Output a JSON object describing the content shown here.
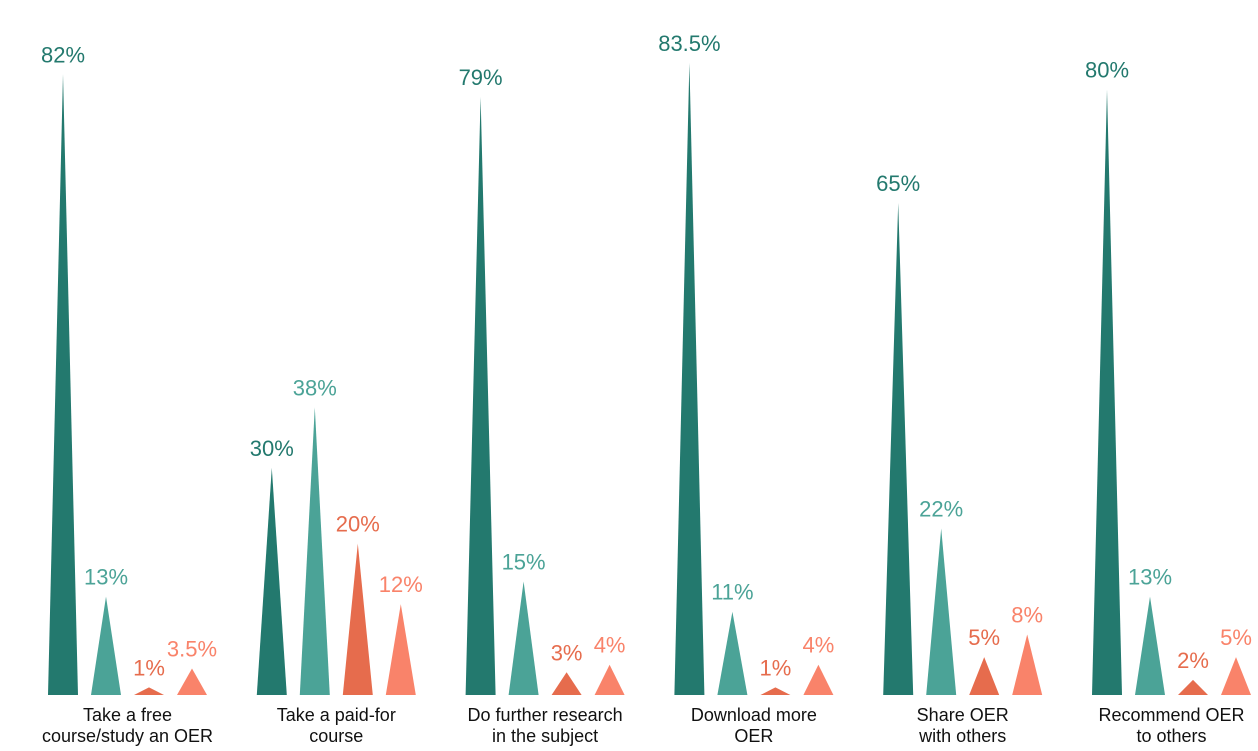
{
  "chart_data": {
    "type": "bar",
    "bar_shape": "triangle",
    "categories": [
      [
        "Take a free",
        "course/study an OER"
      ],
      [
        "Take a paid-for",
        "course"
      ],
      [
        "Do further research",
        "in the subject"
      ],
      [
        "Download more",
        "OER"
      ],
      [
        "Share OER",
        "with others"
      ],
      [
        "Recommend OER",
        "to others"
      ]
    ],
    "series": [
      {
        "color": "#23796e",
        "values": [
          82,
          30,
          79,
          83.5,
          65,
          80
        ],
        "labels": [
          "82%",
          "30%",
          "79%",
          "83.5%",
          "65%",
          "80%"
        ]
      },
      {
        "color": "#4ba397",
        "values": [
          13,
          38,
          15,
          11,
          22,
          13
        ],
        "labels": [
          "13%",
          "38%",
          "15%",
          "11%",
          "22%",
          "13%"
        ]
      },
      {
        "color": "#e66c4d",
        "values": [
          1,
          20,
          3,
          1,
          5,
          2
        ],
        "labels": [
          "1%",
          "20%",
          "3%",
          "1%",
          "5%",
          "2%"
        ]
      },
      {
        "color": "#f9836a",
        "values": [
          3.5,
          12,
          4,
          4,
          8,
          5
        ],
        "labels": [
          "3.5%",
          "12%",
          "4%",
          "4%",
          "8%",
          "5%"
        ]
      }
    ],
    "ylim": [
      0,
      100
    ],
    "grid": false,
    "legend": "none"
  }
}
